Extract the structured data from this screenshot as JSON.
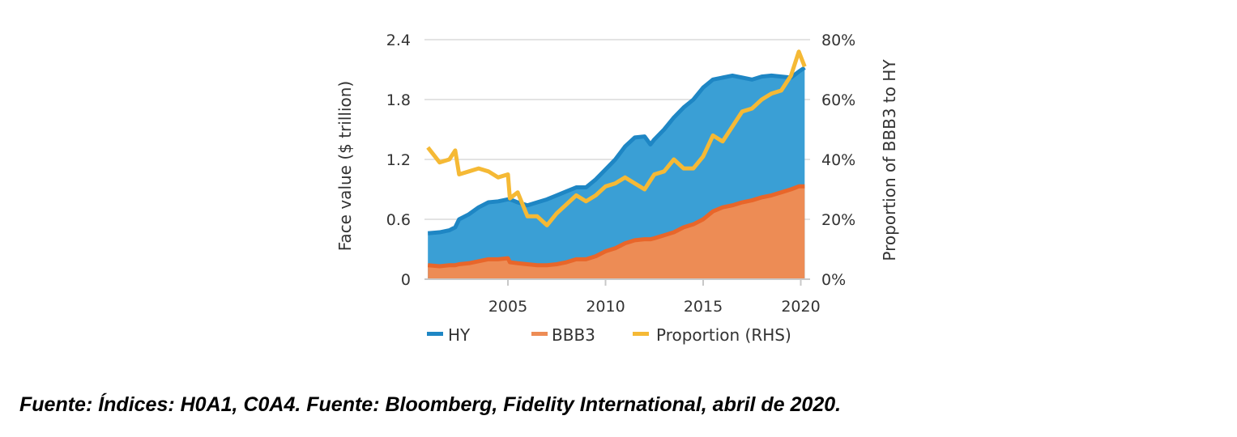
{
  "chart_data": {
    "type": "area",
    "title": "",
    "xlabel": "",
    "ylabel": "Face value ($ trillion)",
    "y2label": "Proportion of BBB3 to HY",
    "xlim": [
      2000.9,
      2020.3
    ],
    "ylim": [
      0,
      2.4
    ],
    "y2lim": [
      0,
      80
    ],
    "grid": true,
    "x_ticks": [
      2005,
      2010,
      2015,
      2020
    ],
    "x_tick_labels": [
      "2005",
      "2010",
      "2015",
      "2020"
    ],
    "y_ticks": [
      0,
      0.6,
      1.2,
      1.8,
      2.4
    ],
    "y_tick_labels": [
      "0",
      "0.6",
      "1.2",
      "1.8",
      "2.4"
    ],
    "y2_ticks": [
      0,
      20,
      40,
      60,
      80
    ],
    "y2_tick_labels": [
      "0%",
      "20%",
      "40%",
      "60%",
      "80%"
    ],
    "legend_position": "bottom",
    "x": [
      2000.9,
      2001.5,
      2002.0,
      2002.3,
      2002.5,
      2003.0,
      2003.5,
      2004.0,
      2004.5,
      2005.0,
      2005.1,
      2005.5,
      2006.0,
      2006.5,
      2007.0,
      2007.5,
      2008.0,
      2008.5,
      2009.0,
      2009.5,
      2010.0,
      2010.5,
      2011.0,
      2011.5,
      2012.0,
      2012.3,
      2012.5,
      2013.0,
      2013.5,
      2014.0,
      2014.5,
      2015.0,
      2015.5,
      2016.0,
      2016.5,
      2017.0,
      2017.5,
      2018.0,
      2018.5,
      2019.0,
      2019.5,
      2019.9,
      2020.2
    ],
    "series": [
      {
        "name": "HY",
        "type": "area",
        "axis": "left",
        "color": "#3a9fd5",
        "line_color": "#1e86c4",
        "values": [
          0.46,
          0.47,
          0.49,
          0.52,
          0.6,
          0.65,
          0.72,
          0.77,
          0.78,
          0.8,
          0.8,
          0.77,
          0.74,
          0.77,
          0.8,
          0.84,
          0.88,
          0.92,
          0.92,
          1.0,
          1.1,
          1.2,
          1.33,
          1.42,
          1.43,
          1.35,
          1.4,
          1.5,
          1.62,
          1.72,
          1.8,
          1.92,
          2.0,
          2.02,
          2.04,
          2.02,
          2.0,
          2.03,
          2.04,
          2.03,
          2.02,
          2.08,
          2.12
        ]
      },
      {
        "name": "BBB3",
        "type": "area",
        "axis": "left",
        "color": "#ed8c55",
        "line_color": "#e8662a",
        "values": [
          0.14,
          0.13,
          0.14,
          0.14,
          0.15,
          0.16,
          0.18,
          0.2,
          0.2,
          0.21,
          0.17,
          0.16,
          0.15,
          0.14,
          0.14,
          0.15,
          0.17,
          0.2,
          0.2,
          0.23,
          0.28,
          0.31,
          0.36,
          0.39,
          0.4,
          0.4,
          0.41,
          0.44,
          0.47,
          0.52,
          0.55,
          0.6,
          0.68,
          0.72,
          0.74,
          0.77,
          0.79,
          0.82,
          0.84,
          0.87,
          0.9,
          0.93,
          0.93
        ]
      },
      {
        "name": "Proportion (RHS)",
        "type": "line",
        "axis": "right",
        "color": "#f5b935",
        "values": [
          44,
          39,
          40,
          43,
          35,
          36,
          37,
          36,
          34,
          35,
          27,
          29,
          21,
          21,
          18,
          22,
          25,
          28,
          26,
          28,
          31,
          32,
          34,
          32,
          30,
          33,
          35,
          36,
          40,
          37,
          37,
          41,
          48,
          46,
          51,
          56,
          57,
          60,
          62,
          63,
          68,
          76,
          71
        ]
      }
    ]
  },
  "legend": [
    {
      "label": "HY",
      "color": "#1e86c4"
    },
    {
      "label": "BBB3",
      "color": "#ed8c55"
    },
    {
      "label": "Proportion (RHS)",
      "color": "#f5b935"
    }
  ],
  "caption": "Fuente: Índices: H0A1, C0A4. Fuente: Bloomberg, Fidelity International, abril de 2020.",
  "colors": {
    "grid": "#e3e3e3",
    "axis": "#c8c8c8",
    "text": "#333333"
  }
}
